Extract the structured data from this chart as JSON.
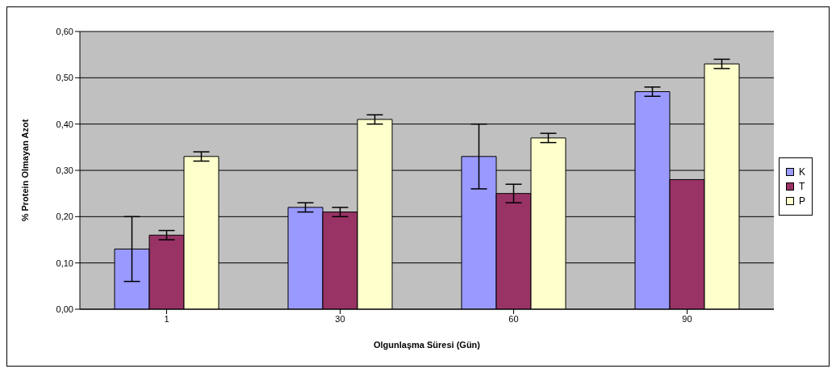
{
  "chart_data": {
    "type": "bar",
    "xlabel": "Olgunlaşma Süresi (Gün)",
    "ylabel": "% Protein Olmayan Azot",
    "categories": [
      "1",
      "30",
      "60",
      "90"
    ],
    "series": [
      {
        "name": "K",
        "color": "#9999ff",
        "values": [
          0.13,
          0.22,
          0.33,
          0.47
        ],
        "errors": [
          0.07,
          0.01,
          0.07,
          0.01
        ]
      },
      {
        "name": "T",
        "color": "#993366",
        "values": [
          0.16,
          0.21,
          0.25,
          0.28
        ],
        "errors": [
          0.01,
          0.01,
          0.02,
          null
        ]
      },
      {
        "name": "P",
        "color": "#ffffcc",
        "values": [
          0.33,
          0.41,
          0.37,
          0.53
        ],
        "errors": [
          0.01,
          0.01,
          0.01,
          0.01
        ]
      }
    ],
    "ylim": [
      0,
      0.6
    ],
    "yticks": [
      {
        "value": 0,
        "label": "0,00"
      },
      {
        "value": 0.1,
        "label": "0,10"
      },
      {
        "value": 0.2,
        "label": "0,20"
      },
      {
        "value": 0.3,
        "label": "0,30"
      },
      {
        "value": 0.4,
        "label": "0,40"
      },
      {
        "value": 0.5,
        "label": "0,50"
      },
      {
        "value": 0.6,
        "label": "0,60"
      }
    ],
    "grid": "y",
    "legend": "right"
  }
}
